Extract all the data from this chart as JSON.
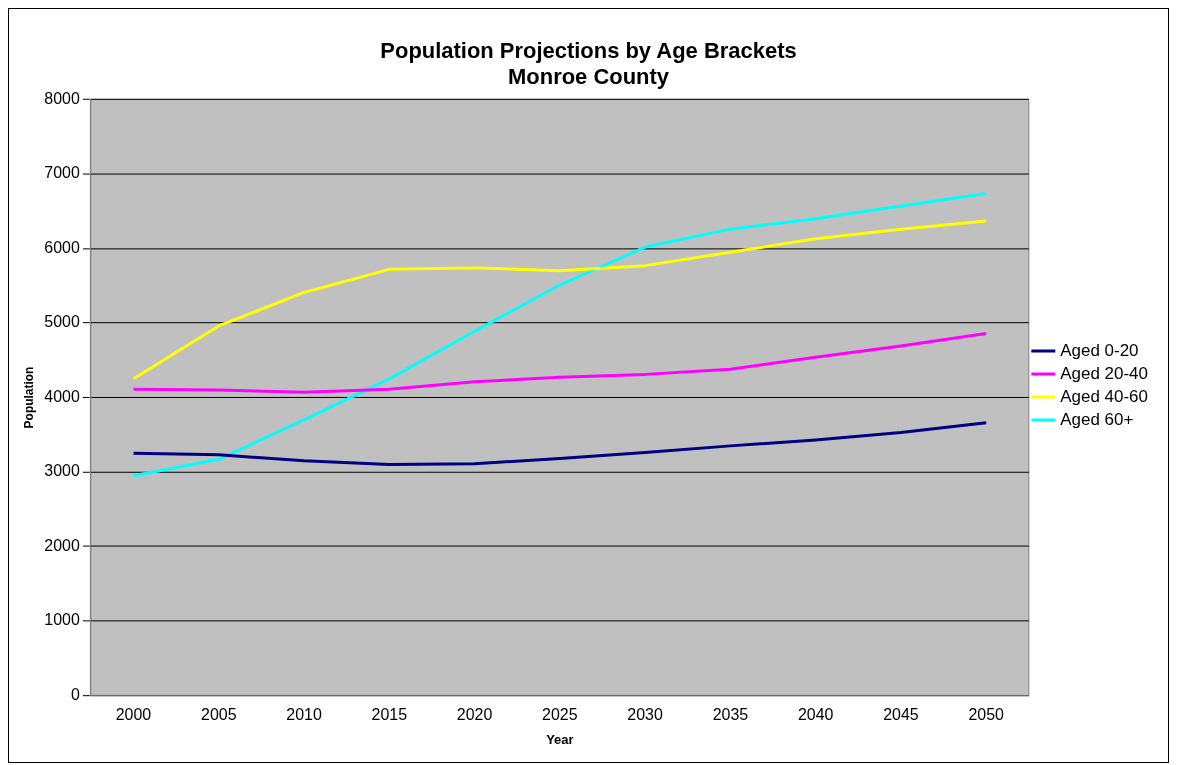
{
  "chart_data": {
    "type": "line",
    "title": "Population Projections by Age Brackets",
    "subtitle": "Monroe County",
    "xlabel": "Year",
    "ylabel": "Population",
    "categories": [
      "2000",
      "2005",
      "2010",
      "2015",
      "2020",
      "2025",
      "2030",
      "2035",
      "2040",
      "2045",
      "2050"
    ],
    "series": [
      {
        "name": "Aged 0-20",
        "color": "#000080",
        "values": [
          3250,
          3230,
          3150,
          3100,
          3110,
          3180,
          3260,
          3350,
          3430,
          3530,
          3660
        ]
      },
      {
        "name": "Aged 20-40",
        "color": "#ff00ff",
        "values": [
          4110,
          4100,
          4070,
          4110,
          4210,
          4270,
          4310,
          4380,
          4540,
          4690,
          4860
        ]
      },
      {
        "name": "Aged 40-60",
        "color": "#ffff00",
        "values": [
          4250,
          4960,
          5410,
          5720,
          5740,
          5700,
          5770,
          5950,
          6130,
          6260,
          6370
        ]
      },
      {
        "name": "Aged 60+",
        "color": "#00ffff",
        "values": [
          2950,
          3170,
          3700,
          4250,
          4890,
          5510,
          6020,
          6260,
          6400,
          6570,
          6740
        ]
      }
    ],
    "ylim": [
      0,
      8000
    ],
    "yticks": [
      0,
      1000,
      2000,
      3000,
      4000,
      5000,
      6000,
      7000,
      8000
    ],
    "grid": "y",
    "legend": "right",
    "marker": "none",
    "line_style": "solid"
  }
}
